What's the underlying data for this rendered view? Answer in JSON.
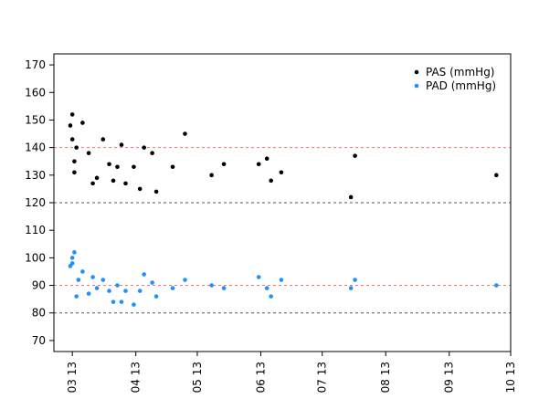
{
  "chart_data": {
    "type": "scatter",
    "title": "",
    "xlabel": "",
    "ylabel": "",
    "x_ticks": [
      "03 13",
      "04 13",
      "05 13",
      "06 13",
      "07 13",
      "08 13",
      "09 13",
      "10 13"
    ],
    "x_tick_dates": [
      "2013-03-01",
      "2013-04-01",
      "2013-05-01",
      "2013-06-01",
      "2013-07-01",
      "2013-08-01",
      "2013-09-01",
      "2013-10-01"
    ],
    "xlim": [
      "2013-02-20",
      "2013-10-01"
    ],
    "ylim": [
      66,
      174
    ],
    "y_ticks": [
      70,
      80,
      90,
      100,
      110,
      120,
      130,
      140,
      150,
      160,
      170
    ],
    "legend_position": "top-right",
    "reference_lines": [
      {
        "y": 140,
        "color": "#ff6f6f",
        "style": "dashed"
      },
      {
        "y": 120,
        "color": "#555555",
        "style": "dashed"
      },
      {
        "y": 90,
        "color": "#ff6f6f",
        "style": "dashed"
      },
      {
        "y": 80,
        "color": "#555555",
        "style": "dashed"
      }
    ],
    "series": [
      {
        "name": "PAS (mmHg)",
        "color": "#000000",
        "points": [
          {
            "x": "2013-02-28",
            "y": 148
          },
          {
            "x": "2013-03-01",
            "y": 152
          },
          {
            "x": "2013-03-01",
            "y": 143
          },
          {
            "x": "2013-03-02",
            "y": 135
          },
          {
            "x": "2013-03-02",
            "y": 131
          },
          {
            "x": "2013-03-03",
            "y": 140
          },
          {
            "x": "2013-03-06",
            "y": 149
          },
          {
            "x": "2013-03-09",
            "y": 138
          },
          {
            "x": "2013-03-11",
            "y": 127
          },
          {
            "x": "2013-03-13",
            "y": 129
          },
          {
            "x": "2013-03-16",
            "y": 143
          },
          {
            "x": "2013-03-19",
            "y": 134
          },
          {
            "x": "2013-03-21",
            "y": 128
          },
          {
            "x": "2013-03-23",
            "y": 133
          },
          {
            "x": "2013-03-25",
            "y": 141
          },
          {
            "x": "2013-03-27",
            "y": 127
          },
          {
            "x": "2013-03-31",
            "y": 133
          },
          {
            "x": "2013-04-03",
            "y": 125
          },
          {
            "x": "2013-04-05",
            "y": 140
          },
          {
            "x": "2013-04-09",
            "y": 138
          },
          {
            "x": "2013-04-11",
            "y": 124
          },
          {
            "x": "2013-04-19",
            "y": 133
          },
          {
            "x": "2013-04-25",
            "y": 145
          },
          {
            "x": "2013-05-08",
            "y": 130
          },
          {
            "x": "2013-05-14",
            "y": 134
          },
          {
            "x": "2013-05-31",
            "y": 134
          },
          {
            "x": "2013-06-04",
            "y": 136
          },
          {
            "x": "2013-06-06",
            "y": 128
          },
          {
            "x": "2013-06-11",
            "y": 131
          },
          {
            "x": "2013-07-15",
            "y": 122
          },
          {
            "x": "2013-07-17",
            "y": 137
          },
          {
            "x": "2013-09-24",
            "y": 130
          }
        ]
      },
      {
        "name": "PAD (mmHg)",
        "color": "#1e90ff",
        "points": [
          {
            "x": "2013-02-28",
            "y": 97
          },
          {
            "x": "2013-03-01",
            "y": 98
          },
          {
            "x": "2013-03-01",
            "y": 100
          },
          {
            "x": "2013-03-02",
            "y": 102
          },
          {
            "x": "2013-03-03",
            "y": 86
          },
          {
            "x": "2013-03-04",
            "y": 92
          },
          {
            "x": "2013-03-06",
            "y": 95
          },
          {
            "x": "2013-03-09",
            "y": 87
          },
          {
            "x": "2013-03-11",
            "y": 93
          },
          {
            "x": "2013-03-13",
            "y": 89
          },
          {
            "x": "2013-03-16",
            "y": 92
          },
          {
            "x": "2013-03-19",
            "y": 88
          },
          {
            "x": "2013-03-21",
            "y": 84
          },
          {
            "x": "2013-03-23",
            "y": 90
          },
          {
            "x": "2013-03-25",
            "y": 84
          },
          {
            "x": "2013-03-27",
            "y": 88
          },
          {
            "x": "2013-03-31",
            "y": 83
          },
          {
            "x": "2013-04-03",
            "y": 88
          },
          {
            "x": "2013-04-05",
            "y": 94
          },
          {
            "x": "2013-04-09",
            "y": 91
          },
          {
            "x": "2013-04-11",
            "y": 86
          },
          {
            "x": "2013-04-19",
            "y": 89
          },
          {
            "x": "2013-04-25",
            "y": 92
          },
          {
            "x": "2013-05-08",
            "y": 90
          },
          {
            "x": "2013-05-14",
            "y": 89
          },
          {
            "x": "2013-05-31",
            "y": 93
          },
          {
            "x": "2013-06-04",
            "y": 89
          },
          {
            "x": "2013-06-06",
            "y": 86
          },
          {
            "x": "2013-06-11",
            "y": 92
          },
          {
            "x": "2013-07-15",
            "y": 89
          },
          {
            "x": "2013-07-17",
            "y": 92
          },
          {
            "x": "2013-09-24",
            "y": 90
          }
        ]
      }
    ]
  }
}
